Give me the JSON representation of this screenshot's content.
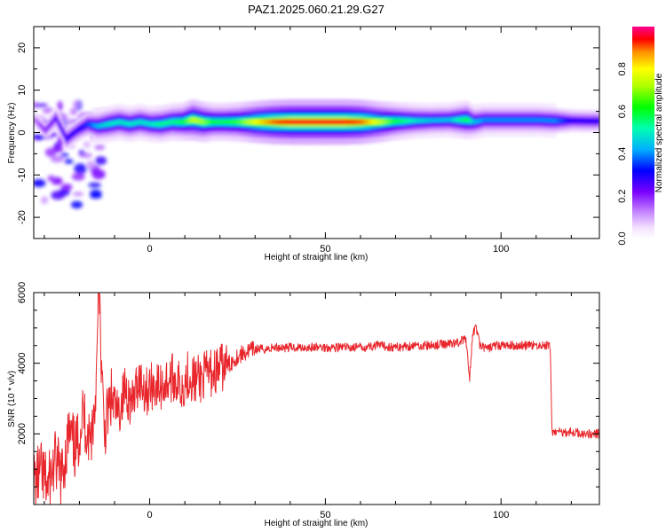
{
  "title": "PAZ1.2025.060.21.29.G27",
  "chart_data": [
    {
      "type": "heatmap",
      "xlabel": "Height of straight line (km)",
      "ylabel": "Frequency (Hz)",
      "xlim": [
        -33,
        128
      ],
      "ylim": [
        -25,
        25
      ],
      "xticks": [
        0,
        50,
        100
      ],
      "yticks": [
        -20,
        -10,
        0,
        10,
        20
      ],
      "colorbar": {
        "label": "Normalized spectral amplitude",
        "range": [
          0,
          1
        ],
        "ticks": [
          0.0,
          0.2,
          0.4,
          0.6,
          0.8
        ]
      },
      "ridge": {
        "x": [
          -33,
          -30,
          -27,
          -24,
          -21,
          -18,
          -15,
          -12,
          -9,
          -6,
          -3,
          0,
          3,
          6,
          9,
          12,
          15,
          18,
          21,
          25,
          30,
          35,
          40,
          45,
          50,
          55,
          60,
          65,
          70,
          75,
          80,
          85,
          90,
          92,
          95,
          100,
          105,
          110,
          115,
          120,
          125,
          128
        ],
        "frequency": [
          3.0,
          0.5,
          3.5,
          -1.5,
          0.5,
          2.0,
          1.5,
          2.0,
          2.5,
          2.0,
          2.5,
          2.0,
          2.0,
          2.5,
          2.5,
          3.0,
          2.5,
          2.5,
          2.5,
          2.5,
          2.5,
          2.5,
          2.5,
          2.5,
          2.5,
          2.5,
          2.5,
          2.5,
          2.7,
          2.8,
          2.9,
          3.0,
          3.0,
          2.5,
          3.0,
          3.0,
          3.0,
          3.0,
          2.8,
          2.8,
          2.7,
          2.7
        ],
        "amplitude": [
          0.15,
          0.2,
          0.25,
          0.3,
          0.3,
          0.35,
          0.45,
          0.5,
          0.5,
          0.5,
          0.5,
          0.5,
          0.55,
          0.55,
          0.6,
          0.75,
          0.7,
          0.6,
          0.6,
          0.65,
          0.8,
          0.9,
          0.95,
          0.95,
          0.95,
          0.95,
          0.9,
          0.75,
          0.6,
          0.5,
          0.45,
          0.45,
          0.6,
          0.45,
          0.4,
          0.4,
          0.4,
          0.4,
          0.4,
          0.3,
          0.3,
          0.3
        ]
      }
    },
    {
      "type": "line",
      "xlabel": "Height of straight line (km)",
      "ylabel": "SNR (10 * v/v)",
      "xlim": [
        -33,
        128
      ],
      "ylim": [
        0,
        6000
      ],
      "xticks": [
        0,
        50,
        100
      ],
      "yticks": [
        2000,
        4000,
        6000
      ],
      "series": [
        {
          "color": "#e8262c",
          "x": [
            -33,
            -31,
            -29,
            -27,
            -25,
            -23,
            -21,
            -19,
            -17,
            -15.5,
            -14.5,
            -13,
            -11,
            -9,
            -7,
            -5,
            -3,
            -1,
            1,
            3,
            5,
            7,
            9,
            11,
            13,
            15,
            17,
            19,
            21,
            23,
            25,
            27,
            30,
            33,
            36,
            40,
            45,
            50,
            55,
            60,
            65,
            70,
            75,
            80,
            85,
            88,
            90,
            91,
            92,
            93,
            94,
            96,
            98,
            100,
            105,
            110,
            113,
            114,
            114.5,
            116,
            120,
            124,
            128
          ],
          "values": [
            600,
            900,
            500,
            1200,
            800,
            2000,
            1500,
            2600,
            1800,
            2800,
            6100,
            2000,
            3000,
            2500,
            3300,
            2800,
            3600,
            3200,
            3400,
            3300,
            3500,
            3600,
            3300,
            3700,
            3500,
            3600,
            3700,
            3800,
            3900,
            4000,
            4200,
            4300,
            4400,
            4400,
            4450,
            4450,
            4450,
            4450,
            4450,
            4450,
            4500,
            4450,
            4500,
            4500,
            4550,
            4600,
            4700,
            3500,
            4900,
            5000,
            4500,
            4400,
            4500,
            4500,
            4500,
            4500,
            4500,
            4500,
            2050,
            2050,
            2050,
            2000,
            2000
          ]
        }
      ]
    }
  ]
}
